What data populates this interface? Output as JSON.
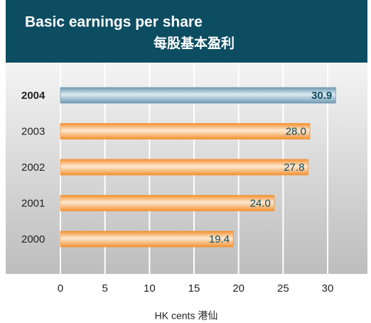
{
  "chart_data": {
    "type": "bar",
    "orientation": "horizontal",
    "title": "Basic earnings per share",
    "subtitle": "每股基本盈利",
    "x_label": "HK cents 港仙",
    "categories": [
      "2004",
      "2003",
      "2002",
      "2001",
      "2000"
    ],
    "values": [
      30.9,
      28.0,
      27.8,
      24.0,
      19.4
    ],
    "value_labels": [
      "30.9",
      "28.0",
      "27.8",
      "24.0",
      "19.4"
    ],
    "colors": [
      "#6f9ab2",
      "#f39232",
      "#f39232",
      "#f39232",
      "#f39232"
    ],
    "xlim": [
      0,
      30
    ],
    "xticks": [
      0,
      5,
      10,
      15,
      20,
      25,
      30
    ],
    "grid": true
  }
}
